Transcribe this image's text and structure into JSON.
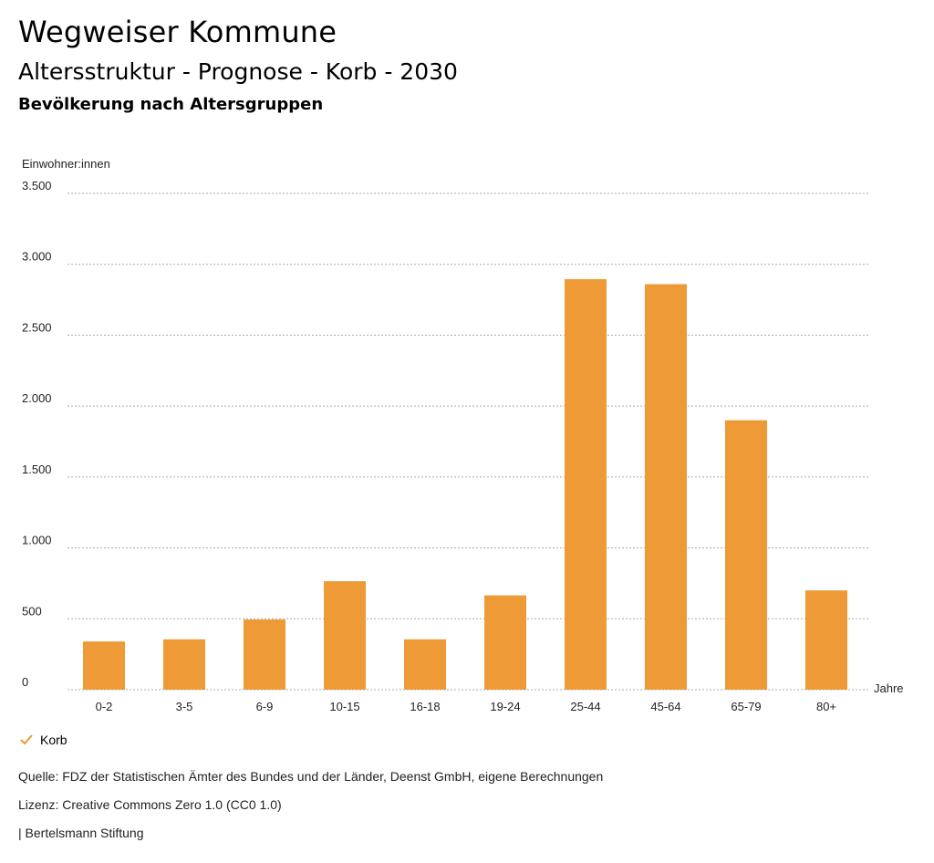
{
  "header": {
    "title": "Wegweiser Kommune",
    "subtitle": "Altersstruktur - Prognose - Korb - 2030",
    "caption": "Bevölkerung nach Altersgruppen"
  },
  "chart_data": {
    "type": "bar",
    "title": "Altersstruktur - Prognose - Korb - 2030",
    "ylabel": "Einwohner:innen",
    "xlabel": "Jahre",
    "ylim": [
      0,
      3500
    ],
    "yticks": [
      0,
      500,
      1000,
      1500,
      2000,
      2500,
      3000,
      3500
    ],
    "ytick_labels": [
      "0",
      "500",
      "1.000",
      "1.500",
      "2.000",
      "2.500",
      "3.000",
      "3.500"
    ],
    "categories": [
      "0-2",
      "3-5",
      "6-9",
      "10-15",
      "16-18",
      "19-24",
      "25-44",
      "45-64",
      "65-79",
      "80+"
    ],
    "series": [
      {
        "name": "Korb",
        "values": [
          340,
          355,
          495,
          765,
          355,
          665,
          2895,
          2860,
          1900,
          700
        ]
      }
    ],
    "grid": true,
    "colors": {
      "bar": "#ED9A37",
      "grid": "#aaaaaa"
    }
  },
  "legend": {
    "label": "Korb",
    "color": "#ED9A37"
  },
  "footer": {
    "source": "Quelle: FDZ der Statistischen Ämter des Bundes und der Länder, Deenst GmbH, eigene Berechnungen",
    "license": "Lizenz: Creative Commons Zero 1.0 (CC0 1.0)",
    "publisher": "| Bertelsmann Stiftung"
  }
}
